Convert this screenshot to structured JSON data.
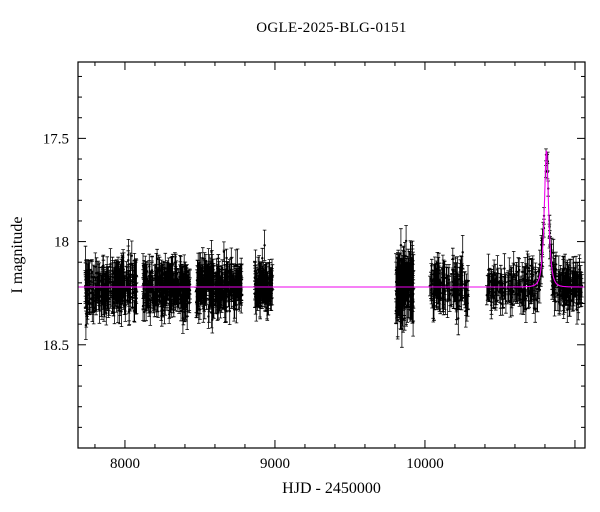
{
  "chart_data": {
    "type": "scatter",
    "title": "OGLE-2025-BLG-0151",
    "xlabel": "HJD - 2450000",
    "ylabel": "I magnitude",
    "xlim": [
      7687,
      11067
    ],
    "ylim": [
      19.0,
      17.13
    ],
    "xticks": [
      8000,
      9000,
      10000
    ],
    "xtick_labels": [
      "8000",
      "9000",
      "10000"
    ],
    "yticks": [
      17.5,
      18.0,
      18.5
    ],
    "ytick_labels": [
      "17.5",
      "18",
      "18.5"
    ],
    "minor_x_step": 200,
    "minor_y_step": 0.1,
    "grid": false,
    "legend": null,
    "background_color": "#ffffff",
    "frame_color": "#000000",
    "baseline_mag": 18.22,
    "marker": {
      "color": "#000000",
      "radius": 1.2
    },
    "model": {
      "kind": "point-source-point-lens",
      "t0": 10810,
      "tE": 22,
      "u0": 0.62,
      "peak_mag": 17.55,
      "color": "#ee00ee"
    },
    "seasons": [
      {
        "t_start": 7735,
        "t_end": 8080,
        "n": 280,
        "sigma": 0.055,
        "err": 0.065
      },
      {
        "t_start": 8120,
        "t_end": 8435,
        "n": 300,
        "sigma": 0.055,
        "err": 0.06
      },
      {
        "t_start": 8475,
        "t_end": 8780,
        "n": 300,
        "sigma": 0.055,
        "err": 0.06
      },
      {
        "t_start": 8865,
        "t_end": 8985,
        "n": 130,
        "sigma": 0.05,
        "err": 0.06
      },
      {
        "t_start": 9805,
        "t_end": 9925,
        "n": 150,
        "sigma": 0.08,
        "err": 0.075
      },
      {
        "t_start": 10030,
        "t_end": 10290,
        "n": 140,
        "sigma": 0.055,
        "err": 0.065
      },
      {
        "t_start": 10410,
        "t_end": 10795,
        "n": 170,
        "sigma": 0.05,
        "err": 0.06
      },
      {
        "t_start": 10804,
        "t_end": 10822,
        "n": 6,
        "sigma": 0.035,
        "err": 0.045
      },
      {
        "t_start": 10826,
        "t_end": 11050,
        "n": 140,
        "sigma": 0.05,
        "err": 0.06
      }
    ]
  }
}
